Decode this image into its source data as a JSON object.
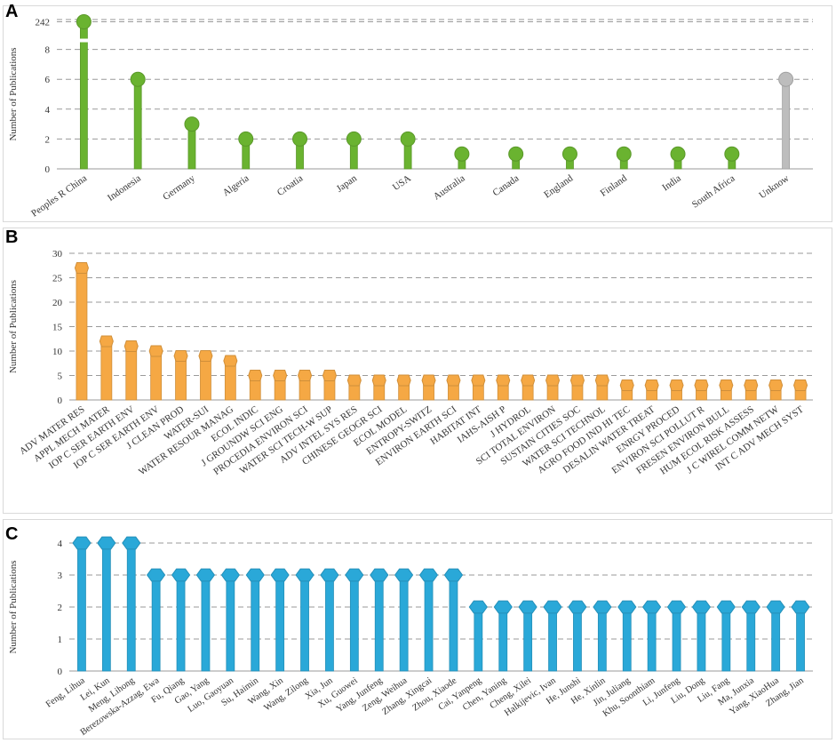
{
  "panels": [
    {
      "label": "A"
    },
    {
      "label": "B"
    },
    {
      "label": "C"
    }
  ],
  "chart_data": [
    {
      "type": "bar",
      "style": "lollipop-circle",
      "ylabel": "Number of Publications",
      "ylim": [
        0,
        10
      ],
      "axis_break": true,
      "yticks": [
        0,
        2,
        4,
        6,
        8
      ],
      "ytick_break_label": "242",
      "color": "#6ab330",
      "highlight_color": "#bdbdbd",
      "categories": [
        "Peoples R China",
        "Indonesia",
        "Germany",
        "Algeria",
        "Croatia",
        "Japan",
        "USA",
        "Australia",
        "Canada",
        "England",
        "Finland",
        "India",
        "South Africa",
        "Unknow"
      ],
      "values": [
        242,
        6,
        3,
        2,
        2,
        2,
        2,
        1,
        1,
        1,
        1,
        1,
        1,
        6
      ],
      "grid": true
    },
    {
      "type": "bar",
      "style": "lollipop-square",
      "ylabel": "Number of Publications",
      "ylim": [
        0,
        30
      ],
      "yticks": [
        0,
        5,
        10,
        15,
        20,
        25,
        30
      ],
      "color": "#f5a844",
      "categories": [
        "ADV MATER RES",
        "APPL MECH MATER",
        "IOP C SER EARTH ENV",
        "IOP C SER EARTH ENV",
        "J CLEAN PROD",
        "WATER-SUI",
        "WATER RESOUR MANAG",
        "ECOL INDIC",
        "J GROUNDW SCI ENG",
        "PROCEDIA ENVIRON SCI",
        "WATER SCI TECH-W SUP",
        "ADV INTEL SYS RES",
        "CHINESE GEOGR SCI",
        "ECOL MODEL",
        "ENTROPY-SWITZ",
        "ENVIRON EARTH SCI",
        "HABITAT INT",
        "IAHS-AISH P",
        "J HYDROL",
        "SCI TOTAL ENVIRON",
        "SUSTAIN CITIES SOC",
        "WATER SCI TECHNOL",
        "AGRO FOOD IND HI TEC",
        "DESALIN WATER TREAT",
        "ENRGY PROCED",
        "ENVIRON SCI POLLUT R",
        "FRESEN ENVIRON BULL",
        "HUM ECOL RISK ASSESS",
        "J C WIREL COMM NETW",
        "INT C ADV MECH SYST"
      ],
      "values": [
        27,
        12,
        11,
        10,
        9,
        9,
        8,
        5,
        5,
        5,
        5,
        4,
        4,
        4,
        4,
        4,
        4,
        4,
        4,
        4,
        4,
        4,
        3,
        3,
        3,
        3,
        3,
        3,
        3,
        3
      ],
      "grid": true
    },
    {
      "type": "bar",
      "style": "lollipop-hexagon",
      "ylabel": "Number of Publications",
      "ylim": [
        0,
        4
      ],
      "yticks": [
        0,
        1,
        2,
        3,
        4
      ],
      "color": "#2aa8d8",
      "categories": [
        "Feng, Lihua",
        "Lei, Kun",
        "Meng, Lihong",
        "Berezowska-Azzag, Ewa",
        "Fu, Qiang",
        "Gao, Yang",
        "Luo, Gaoyuan",
        "Su, Haimin",
        "Wang, Xin",
        "Wang, Zilong",
        "Xia, Jun",
        "Xu, Guowei",
        "Yang, Junfeng",
        "Zeng, Weihua",
        "Zhang, Xingcai",
        "Zhou, Xiaode",
        "Cai, Yanpeng",
        "Chen, Yaning",
        "Cheng, Xilei",
        "Halkijevic, Ivan",
        "He, Junshi",
        "He, Xinlin",
        "Jin, Juliang",
        "Khu, Soonthiam",
        "Li, Junfeng",
        "Liu, Dong",
        "Liu, Fang",
        "Ma, Junxia",
        "Yang, XiaoHua",
        "Zhang, Jian"
      ],
      "values": [
        4,
        4,
        4,
        3,
        3,
        3,
        3,
        3,
        3,
        3,
        3,
        3,
        3,
        3,
        3,
        3,
        2,
        2,
        2,
        2,
        2,
        2,
        2,
        2,
        2,
        2,
        2,
        2,
        2,
        2
      ],
      "grid": true
    }
  ]
}
